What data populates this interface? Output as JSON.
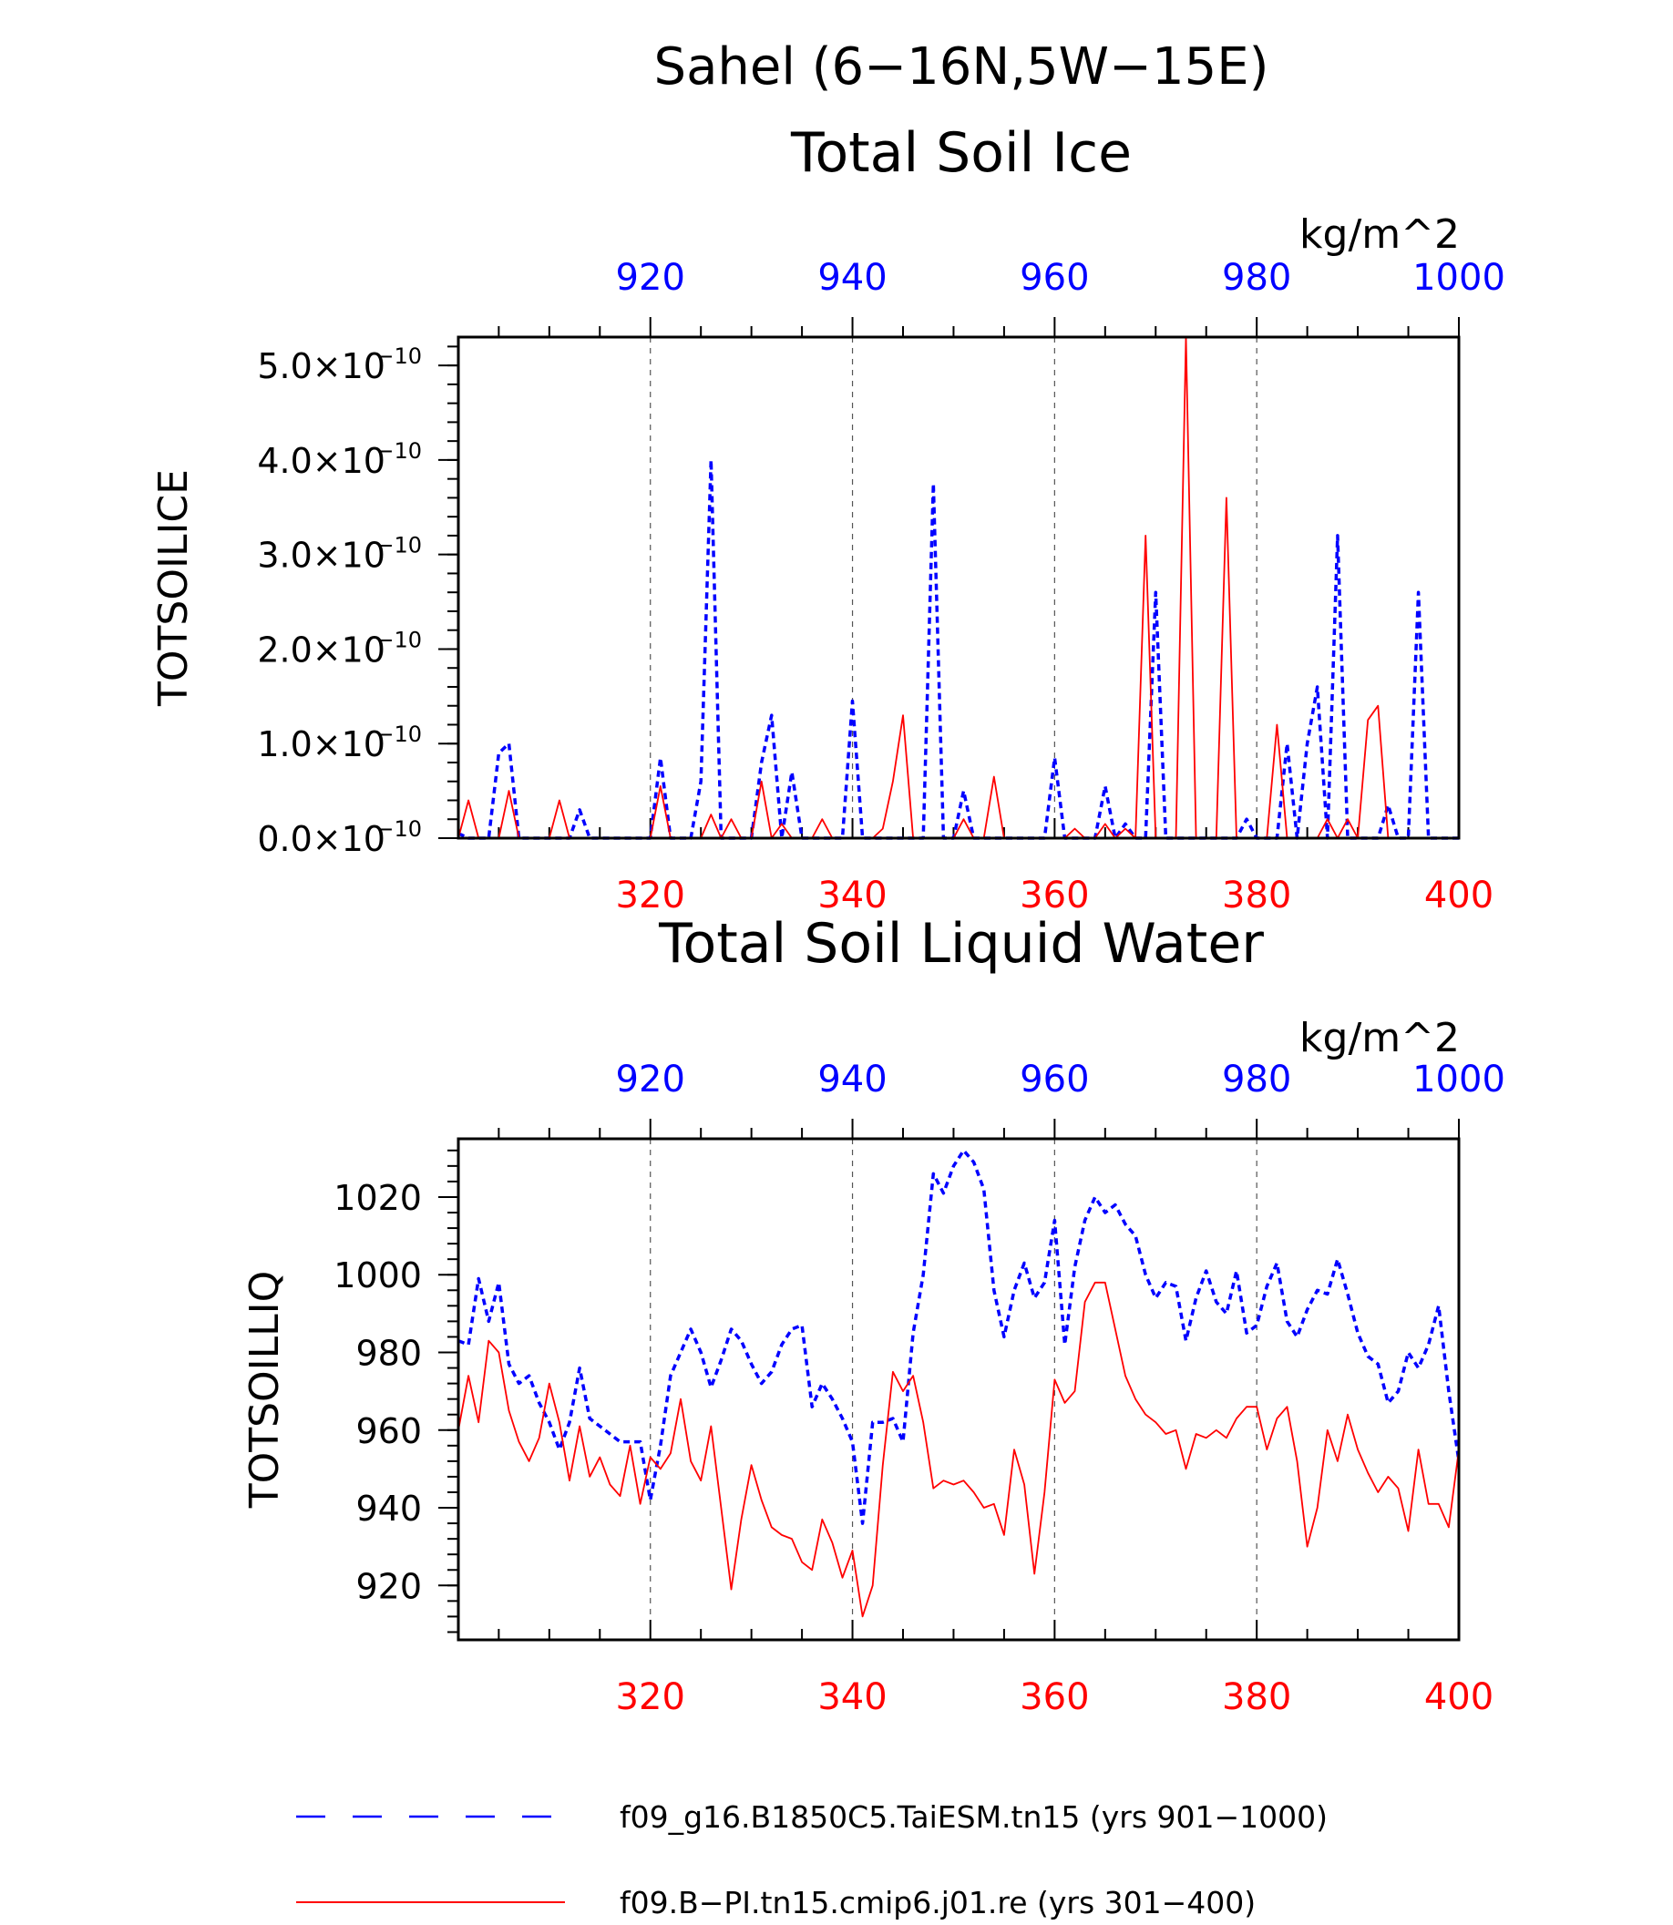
{
  "title_line1": "Sahel (6−16N,5W−15E)",
  "legend": [
    {
      "label": "f09_g16.B1850C5.TaiESM.tn15 (yrs 901−1000)",
      "color": "#0000ff",
      "style": "dashed"
    },
    {
      "label": "f09.B−PI.tn15.cmip6.j01.re (yrs 301−400)",
      "color": "#ff0000",
      "style": "solid"
    }
  ],
  "colors": {
    "blue_series": "#0000ff",
    "red_series": "#ff0000",
    "axis": "#000000",
    "grid": "#555555"
  },
  "chart_data": [
    {
      "type": "line",
      "title": "Total Soil Ice",
      "units": "kg/m^2",
      "ylabel": "TOTSOILICE",
      "ylim": [
        0,
        5.3e-10
      ],
      "yticks": [
        0,
        1e-10,
        2e-10,
        3e-10,
        4e-10,
        5e-10
      ],
      "ytick_labels": [
        "0.0×10",
        "1.0×10",
        "2.0×10",
        "3.0×10",
        "4.0×10",
        "5.0×10"
      ],
      "ytick_exponent": "−10",
      "x_bottom": {
        "range": [
          301,
          400
        ],
        "ticks": [
          320,
          340,
          360,
          380,
          400
        ],
        "labels": [
          "320",
          "340",
          "360",
          "380",
          "400"
        ]
      },
      "x_top": {
        "range": [
          901,
          1000
        ],
        "ticks": [
          920,
          940,
          960,
          980,
          1000
        ],
        "labels": [
          "920",
          "940",
          "960",
          "980",
          "1000"
        ]
      },
      "gridlines_x": [
        320,
        340,
        360,
        380
      ],
      "series": [
        {
          "axis": "top",
          "style": "dashed",
          "color": "#0000ff",
          "x_start": 901,
          "values": [
            0.05,
            0.0,
            0.0,
            0.0,
            0.9,
            1.0,
            0.0,
            0.0,
            0.0,
            0.0,
            0.0,
            0.0,
            0.3,
            0.0,
            0.0,
            0.0,
            0.0,
            0.0,
            0.0,
            0.0,
            0.85,
            0.0,
            0.0,
            0.0,
            0.6,
            4.0,
            0.0,
            0.0,
            0.0,
            0.0,
            0.8,
            1.3,
            0.0,
            0.7,
            0.0,
            0.0,
            0.0,
            0.0,
            0.0,
            1.45,
            0.0,
            0.0,
            0.0,
            0.0,
            0.0,
            0.0,
            0.0,
            3.75,
            0.0,
            0.0,
            0.5,
            0.0,
            0.0,
            0.0,
            0.0,
            0.0,
            0.0,
            0.0,
            0.0,
            0.85,
            0.0,
            0.0,
            0.0,
            0.0,
            0.55,
            0.0,
            0.15,
            0.0,
            0.0,
            2.6,
            0.0,
            0.0,
            0.0,
            0.0,
            0.0,
            0.0,
            0.0,
            0.0,
            0.2,
            0.0,
            0.0,
            0.0,
            1.0,
            0.0,
            1.0,
            1.6,
            0.0,
            3.2,
            0.0,
            0.0,
            0.0,
            0.0,
            0.35,
            0.0,
            0.0,
            2.6,
            0.0,
            0.0,
            0.0,
            0.0
          ],
          "value_scale": 1e-10
        },
        {
          "axis": "bottom",
          "style": "solid",
          "color": "#ff0000",
          "x_start": 301,
          "values": [
            0.0,
            0.4,
            0.0,
            0.0,
            0.0,
            0.5,
            0.0,
            0.0,
            0.0,
            0.0,
            0.4,
            0.0,
            0.0,
            0.0,
            0.0,
            0.0,
            0.0,
            0.0,
            0.0,
            0.0,
            0.55,
            0.0,
            0.0,
            0.0,
            0.0,
            0.25,
            0.0,
            0.2,
            0.0,
            0.0,
            0.6,
            0.0,
            0.15,
            0.0,
            0.0,
            0.0,
            0.2,
            0.0,
            0.0,
            0.0,
            0.0,
            0.0,
            0.1,
            0.6,
            1.3,
            0.0,
            0.0,
            0.0,
            0.0,
            0.0,
            0.2,
            0.0,
            0.0,
            0.65,
            0.0,
            0.0,
            0.0,
            0.0,
            0.0,
            0.0,
            0.0,
            0.1,
            0.0,
            0.0,
            0.15,
            0.0,
            0.1,
            0.0,
            3.2,
            0.0,
            0.0,
            0.0,
            5.3,
            0.0,
            0.0,
            0.0,
            3.6,
            0.0,
            0.0,
            0.0,
            0.0,
            1.2,
            0.0,
            0.0,
            0.0,
            0.0,
            0.2,
            0.0,
            0.2,
            0.0,
            1.25,
            1.4,
            0.0,
            0.0,
            0.0,
            0.0,
            0.0,
            0.0,
            0.0,
            0.0
          ],
          "value_scale": 1e-10
        }
      ]
    },
    {
      "type": "line",
      "title": "Total Soil Liquid Water",
      "units": "kg/m^2",
      "ylabel": "TOTSOILLIQ",
      "ylim": [
        906,
        1035
      ],
      "yticks": [
        920,
        940,
        960,
        980,
        1000,
        1020
      ],
      "ytick_labels": [
        "920",
        "940",
        "960",
        "980",
        "1000",
        "1020"
      ],
      "x_bottom": {
        "range": [
          301,
          400
        ],
        "ticks": [
          320,
          340,
          360,
          380,
          400
        ],
        "labels": [
          "320",
          "340",
          "360",
          "380",
          "400"
        ]
      },
      "x_top": {
        "range": [
          901,
          1000
        ],
        "ticks": [
          920,
          940,
          960,
          980,
          1000
        ],
        "labels": [
          "920",
          "940",
          "960",
          "980",
          "1000"
        ]
      },
      "gridlines_x": [
        320,
        340,
        360,
        380
      ],
      "series": [
        {
          "axis": "top",
          "style": "dashed",
          "color": "#0000ff",
          "x_start": 901,
          "values": [
            983,
            982,
            999,
            988,
            998,
            977,
            972,
            974,
            967,
            962,
            955,
            962,
            976,
            963,
            961,
            959,
            957,
            957,
            957,
            942,
            956,
            974,
            980,
            986,
            980,
            971,
            978,
            986,
            983,
            977,
            972,
            975,
            982,
            986,
            987,
            966,
            972,
            968,
            963,
            957,
            936,
            962,
            962,
            963,
            957,
            985,
            1000,
            1026,
            1021,
            1028,
            1032,
            1029,
            1022,
            996,
            984,
            996,
            1003,
            994,
            998,
            1014,
            982,
            1002,
            1014,
            1020,
            1016,
            1018,
            1013,
            1010,
            1000,
            994,
            998,
            997,
            983,
            994,
            1001,
            993,
            990,
            1001,
            985,
            987,
            997,
            1003,
            988,
            984,
            991,
            996,
            995,
            1004,
            995,
            985,
            979,
            977,
            967,
            970,
            980,
            976,
            982,
            992,
            970,
            952
          ],
          "value_scale": 1
        },
        {
          "axis": "bottom",
          "style": "solid",
          "color": "#ff0000",
          "x_start": 301,
          "values": [
            960,
            974,
            962,
            983,
            980,
            965,
            957,
            952,
            958,
            972,
            962,
            947,
            961,
            948,
            953,
            946,
            943,
            956,
            941,
            953,
            950,
            954,
            968,
            952,
            947,
            961,
            940,
            919,
            937,
            951,
            942,
            935,
            933,
            932,
            926,
            924,
            937,
            931,
            922,
            929,
            912,
            920,
            951,
            975,
            970,
            974,
            962,
            945,
            947,
            946,
            947,
            944,
            940,
            941,
            933,
            955,
            946,
            923,
            944,
            973,
            967,
            970,
            993,
            998,
            998,
            986,
            974,
            968,
            964,
            962,
            959,
            960,
            950,
            959,
            958,
            960,
            958,
            963,
            966,
            966,
            955,
            963,
            966,
            952,
            930,
            940,
            960,
            952,
            964,
            955,
            949,
            944,
            948,
            945,
            934,
            955,
            941,
            941,
            935,
            955
          ],
          "value_scale": 1
        }
      ]
    }
  ]
}
